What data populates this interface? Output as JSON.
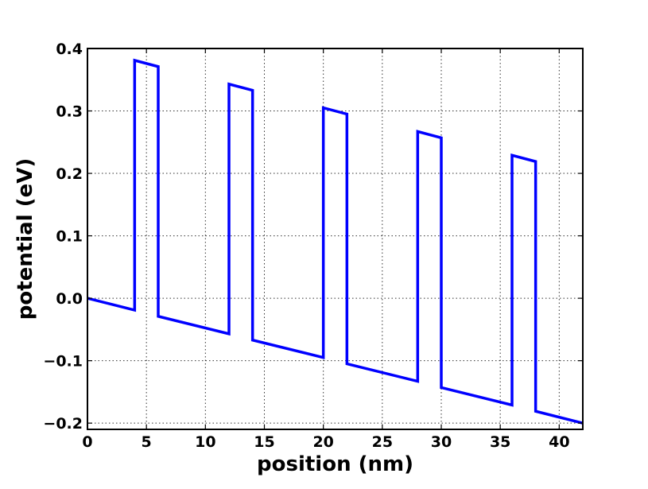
{
  "chart_data": {
    "type": "line",
    "xlabel": "position (nm)",
    "ylabel": "potential (eV)",
    "xlim": [
      0,
      42
    ],
    "ylim": [
      -0.21,
      0.4
    ],
    "xticks": [
      0,
      5,
      10,
      15,
      20,
      25,
      30,
      35,
      40
    ],
    "xtick_labels": [
      "0",
      "5",
      "10",
      "15",
      "20",
      "25",
      "30",
      "35",
      "40"
    ],
    "yticks": [
      -0.2,
      -0.1,
      0.0,
      0.1,
      0.2,
      0.3,
      0.4
    ],
    "ytick_labels": [
      "−0.2",
      "−0.1",
      "0.0",
      "0.1",
      "0.2",
      "0.3",
      "0.4"
    ],
    "grid": true,
    "series": [
      {
        "color": "#0000ff",
        "x": [
          0,
          4,
          4,
          6,
          6,
          12,
          12,
          14,
          14,
          20,
          20,
          22,
          22,
          28,
          28,
          30,
          30,
          36,
          36,
          38,
          38,
          42
        ],
        "y": [
          0.0,
          -0.019,
          0.381,
          0.371,
          -0.029,
          -0.057,
          0.343,
          0.333,
          -0.067,
          -0.095,
          0.305,
          0.295,
          -0.105,
          -0.133,
          0.267,
          0.257,
          -0.143,
          -0.171,
          0.229,
          0.219,
          -0.181,
          -0.2
        ]
      }
    ]
  }
}
